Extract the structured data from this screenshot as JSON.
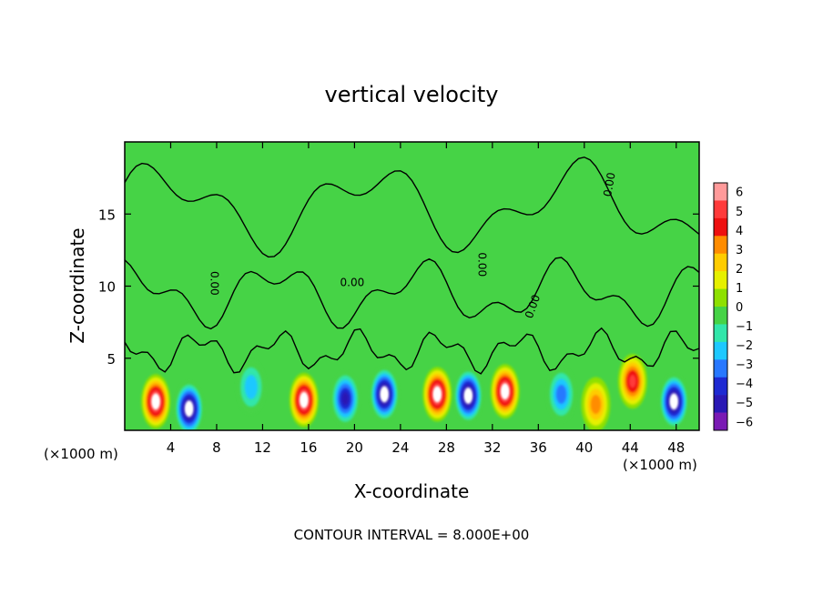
{
  "chart_data": {
    "type": "heatmap",
    "title": "vertical velocity",
    "xlabel": "X-coordinate",
    "ylabel": "Z-coordinate",
    "x_unit_left": "(×1000 m)",
    "x_unit_right": "(×1000 m)",
    "xlim": [
      0,
      50
    ],
    "ylim": [
      0,
      20
    ],
    "x_ticks": [
      4,
      8,
      12,
      16,
      20,
      24,
      28,
      32,
      36,
      40,
      44,
      48
    ],
    "y_ticks": [
      5,
      10,
      15
    ],
    "footer": "CONTOUR INTERVAL = 8.000E+00",
    "contour_label": "0.00",
    "colorbar": {
      "levels": [
        6,
        5,
        4,
        3,
        2,
        1,
        0,
        -1,
        -2,
        -3,
        -4,
        -5,
        -6
      ],
      "colors": [
        "#ff9a9a",
        "#ff3a3a",
        "#ee1010",
        "#ff8c00",
        "#ffcc00",
        "#e6f000",
        "#8ee000",
        "#46d346",
        "#32e6aa",
        "#1ec8ff",
        "#2878ff",
        "#1e2ad2",
        "#2a18b4",
        "#7a1ab4"
      ],
      "background_value_color": "#46d346",
      "extreme_positive_color": "#ffffff"
    },
    "updrafts": [
      {
        "x": 2.7,
        "z": 2.0,
        "peak": 8
      },
      {
        "x": 15.6,
        "z": 2.1,
        "peak": 8
      },
      {
        "x": 27.2,
        "z": 2.5,
        "peak": 8
      },
      {
        "x": 33.1,
        "z": 2.7,
        "peak": 8
      },
      {
        "x": 44.2,
        "z": 3.4,
        "peak": 6
      },
      {
        "x": 41.0,
        "z": 1.8,
        "peak": 4
      }
    ],
    "downdrafts": [
      {
        "x": 5.6,
        "z": 1.5,
        "peak": -8
      },
      {
        "x": 22.6,
        "z": 2.5,
        "peak": -8
      },
      {
        "x": 29.9,
        "z": 2.4,
        "peak": -8
      },
      {
        "x": 47.8,
        "z": 2.0,
        "peak": -8
      },
      {
        "x": 19.2,
        "z": 2.2,
        "peak": -6
      },
      {
        "x": 11.0,
        "z": 3.0,
        "peak": -3
      },
      {
        "x": 38.0,
        "z": 2.5,
        "peak": -4
      }
    ],
    "zero_contour_labels": [
      {
        "x": 7.5,
        "z": 10.2,
        "angle": 90
      },
      {
        "x": 19.8,
        "z": 10.0,
        "angle": 0
      },
      {
        "x": 30.8,
        "z": 11.5,
        "angle": 90
      },
      {
        "x": 35.8,
        "z": 8.5,
        "angle": -70
      },
      {
        "x": 42.5,
        "z": 17.0,
        "angle": -80
      }
    ]
  }
}
